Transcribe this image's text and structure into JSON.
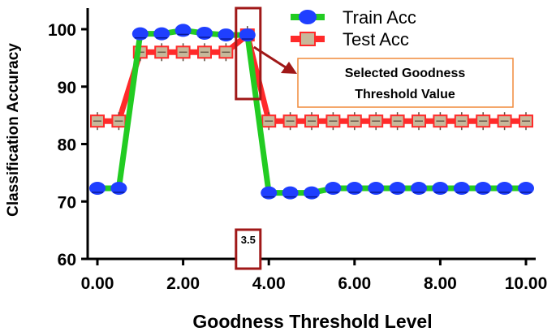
{
  "chart_data": {
    "type": "line",
    "xlabel": "Goodness Threshold Level",
    "ylabel": "Classification Accuracy",
    "xlim": [
      -0.2,
      10.2
    ],
    "ylim": [
      60,
      105
    ],
    "xticks": [
      0,
      2,
      4,
      6,
      8,
      10
    ],
    "xtick_labels": [
      "0.00",
      "2.00",
      "4.00",
      "6.00",
      "8.00",
      "10.00"
    ],
    "yticks": [
      60,
      70,
      80,
      90,
      100
    ],
    "ytick_labels": [
      "60",
      "70",
      "80",
      "90",
      "100"
    ],
    "x": [
      0,
      0.5,
      1,
      1.5,
      2,
      2.5,
      3,
      3.5,
      4,
      4.5,
      5,
      5.5,
      6,
      6.5,
      7,
      7.5,
      8,
      8.5,
      9,
      9.5,
      10
    ],
    "series": [
      {
        "name": "Train Acc",
        "values": [
          72.3,
          72.3,
          99.2,
          99.2,
          99.8,
          99.3,
          99.0,
          99.0,
          71.5,
          71.5,
          71.5,
          72.3,
          72.3,
          72.3,
          72.3,
          72.3,
          72.3,
          72.3,
          72.3,
          72.3,
          72.3
        ],
        "line_color": "#22cc22",
        "marker_color": "#1f3fff",
        "marker": "circle"
      },
      {
        "name": "Test Acc",
        "values": [
          84.0,
          84.0,
          96.0,
          96.0,
          96.0,
          96.0,
          96.0,
          99.0,
          84.0,
          84.0,
          84.0,
          84.0,
          84.0,
          84.0,
          84.0,
          84.0,
          84.0,
          84.0,
          84.0,
          84.0,
          84.0
        ],
        "line_color": "#ff2a2a",
        "marker_color": "#c8b89a",
        "marker": "square"
      }
    ],
    "legend": {
      "position": "top-right",
      "entries": [
        "Train Acc",
        "Test Acc"
      ]
    },
    "annotations": {
      "callout_text_line1": "Selected Goodness",
      "callout_text_line2": "Threshold Value",
      "selected_label": "3.5",
      "selected_x": 3.5,
      "highlight_color": "#a01818",
      "callout_border_color": "#f08a3a"
    },
    "grid": false
  }
}
